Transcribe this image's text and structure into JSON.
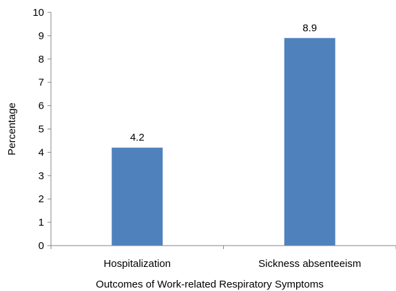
{
  "chart_data": {
    "type": "bar",
    "title": "",
    "xlabel": "Outcomes of Work-related Respiratory Symptoms",
    "ylabel": "Percentage",
    "ylim": [
      0,
      10
    ],
    "yticks": [
      0,
      1,
      2,
      3,
      4,
      5,
      6,
      7,
      8,
      9,
      10
    ],
    "categories": [
      "Hospitalization",
      "Sickness absenteeism"
    ],
    "values": [
      4.2,
      8.9
    ],
    "data_labels": [
      "4.2",
      "8.9"
    ],
    "bar_color": "#4f81bd",
    "grid": false,
    "legend": "none"
  }
}
